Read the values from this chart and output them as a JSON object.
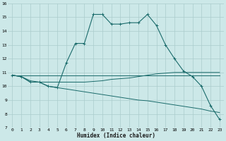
{
  "xlabel": "Humidex (Indice chaleur)",
  "bg_color": "#cce8e8",
  "grid_color": "#aacccc",
  "line_color": "#1a6b6b",
  "xlim": [
    -0.5,
    23.5
  ],
  "ylim": [
    7,
    16
  ],
  "xticks": [
    0,
    1,
    2,
    3,
    4,
    5,
    6,
    7,
    8,
    9,
    10,
    11,
    12,
    13,
    14,
    15,
    16,
    17,
    18,
    19,
    20,
    21,
    22,
    23
  ],
  "yticks": [
    7,
    8,
    9,
    10,
    11,
    12,
    13,
    14,
    15,
    16
  ],
  "series1_x": [
    0,
    1,
    2,
    3,
    4,
    5,
    6,
    7,
    8,
    9,
    10,
    11,
    12,
    13,
    14,
    15,
    16,
    17,
    18,
    19,
    20,
    21,
    22,
    23
  ],
  "series1_y": [
    10.8,
    10.7,
    10.3,
    10.3,
    10.0,
    9.9,
    11.7,
    13.1,
    13.1,
    15.2,
    15.2,
    14.5,
    14.5,
    14.6,
    14.6,
    15.2,
    14.4,
    13.0,
    12.0,
    11.1,
    10.7,
    10.0,
    8.6,
    7.6
  ],
  "series2_x": [
    0,
    1,
    2,
    3,
    4,
    5,
    6,
    7,
    8,
    9,
    10,
    11,
    12,
    13,
    14,
    15,
    16,
    17,
    18,
    19,
    20,
    21,
    22,
    23
  ],
  "series2_y": [
    10.8,
    10.7,
    10.3,
    10.3,
    10.3,
    10.3,
    10.3,
    10.3,
    10.3,
    10.35,
    10.4,
    10.5,
    10.55,
    10.6,
    10.7,
    10.8,
    10.9,
    10.95,
    11.0,
    11.0,
    11.0,
    11.0,
    11.0,
    11.0
  ],
  "series3_x": [
    0,
    1,
    2,
    3,
    4,
    5,
    6,
    7,
    8,
    9,
    10,
    11,
    12,
    13,
    14,
    15,
    16,
    17,
    18,
    19,
    20,
    21,
    22,
    23
  ],
  "series3_y": [
    10.8,
    10.7,
    10.4,
    10.3,
    10.0,
    9.9,
    9.8,
    9.7,
    9.6,
    9.5,
    9.4,
    9.3,
    9.2,
    9.1,
    9.0,
    8.95,
    8.85,
    8.75,
    8.65,
    8.55,
    8.45,
    8.35,
    8.2,
    8.1
  ],
  "series4_x": [
    0,
    1,
    2,
    3,
    4,
    5,
    6,
    7,
    8,
    9,
    10,
    11,
    12,
    13,
    14,
    15,
    16,
    17,
    18,
    19,
    20,
    21,
    22,
    23
  ],
  "series4_y": [
    10.8,
    10.8,
    10.8,
    10.8,
    10.8,
    10.8,
    10.8,
    10.8,
    10.8,
    10.8,
    10.8,
    10.8,
    10.8,
    10.8,
    10.8,
    10.8,
    10.8,
    10.8,
    10.8,
    10.8,
    10.8,
    10.8,
    10.8,
    10.8
  ]
}
